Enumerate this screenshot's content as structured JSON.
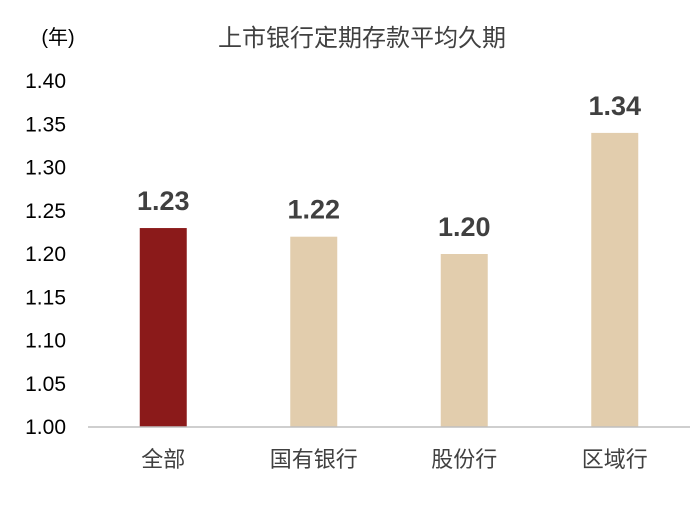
{
  "chart_data": {
    "type": "bar",
    "title": "上市银行定期存款平均久期",
    "ylabel": "(年)",
    "xlabel": "",
    "categories": [
      "全部",
      "国有银行",
      "股份行",
      "区域行"
    ],
    "values": [
      1.23,
      1.22,
      1.2,
      1.34
    ],
    "data_labels": [
      "1.23",
      "1.22",
      "1.20",
      "1.34"
    ],
    "ylim": [
      1.0,
      1.4
    ],
    "yticks": [
      "1.00",
      "1.05",
      "1.10",
      "1.15",
      "1.20",
      "1.25",
      "1.30",
      "1.35",
      "1.40"
    ],
    "grid": false,
    "legend": "none",
    "colors": {
      "highlight": "#8B1A1A",
      "bar": "#E2CDAD",
      "axis": "#BFBFBF",
      "text": "#404040"
    }
  }
}
